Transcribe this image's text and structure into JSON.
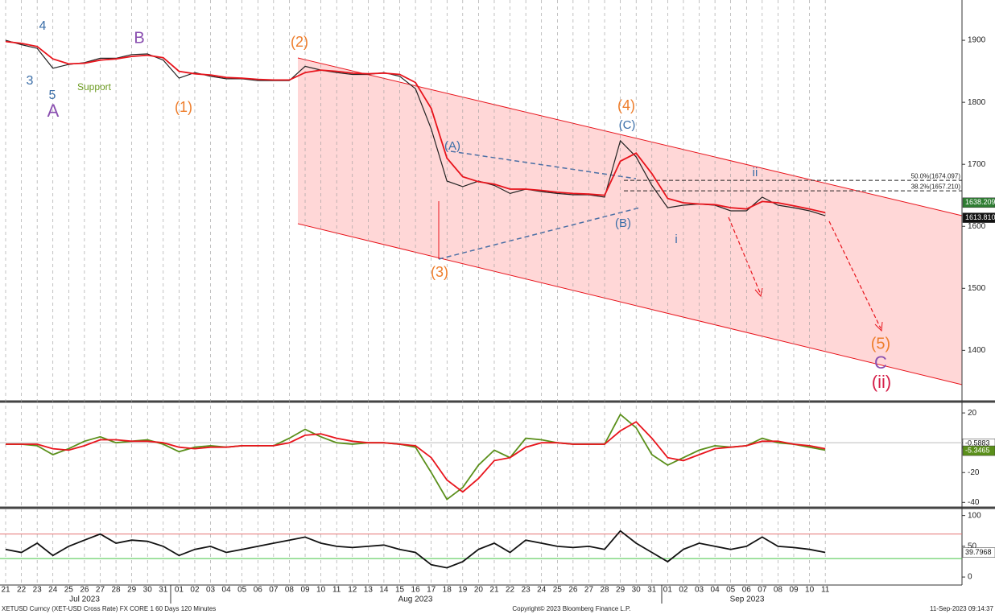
{
  "chart_data": [
    {
      "type": "line",
      "categories": [
        "21",
        "22",
        "23",
        "24",
        "25",
        "26",
        "27",
        "28",
        "29",
        "30",
        "31",
        "01",
        "02",
        "03",
        "04",
        "05",
        "06",
        "07",
        "08",
        "09",
        "10",
        "11",
        "12",
        "13",
        "14",
        "15",
        "16",
        "17",
        "18",
        "19",
        "20",
        "21",
        "22",
        "23",
        "24",
        "25",
        "26",
        "27",
        "28",
        "29",
        "30",
        "31",
        "01",
        "02",
        "03",
        "04",
        "05",
        "06",
        "07",
        "08",
        "09",
        "10",
        "11"
      ],
      "months": [
        "Jul 2023",
        "Aug 2023",
        "Sep 2023"
      ],
      "series": [
        {
          "color": "#222222",
          "values": [
            1900,
            1893,
            1887,
            1855,
            1861,
            1864,
            1871,
            1871,
            1877,
            1878,
            1868,
            1839,
            1848,
            1842,
            1838,
            1838,
            1835,
            1835,
            1835,
            1858,
            1852,
            1848,
            1845,
            1845,
            1848,
            1842,
            1822,
            1757,
            1673,
            1664,
            1673,
            1666,
            1653,
            1660,
            1656,
            1653,
            1651,
            1651,
            1647,
            1738,
            1712,
            1666,
            1630,
            1634,
            1636,
            1634,
            1625,
            1625,
            1647,
            1634,
            1630,
            1625,
            1617
          ]
        },
        {
          "color": "#e8141c",
          "values": [
            1898,
            1895,
            1890,
            1870,
            1862,
            1863,
            1868,
            1870,
            1874,
            1876,
            1872,
            1850,
            1846,
            1844,
            1840,
            1839,
            1837,
            1836,
            1836,
            1848,
            1852,
            1850,
            1847,
            1846,
            1847,
            1845,
            1832,
            1790,
            1710,
            1680,
            1672,
            1668,
            1660,
            1660,
            1658,
            1655,
            1653,
            1652,
            1650,
            1705,
            1718,
            1685,
            1645,
            1638,
            1636,
            1635,
            1630,
            1628,
            1640,
            1638,
            1633,
            1628,
            1622
          ]
        }
      ],
      "ylim": [
        1320,
        1965
      ],
      "yticks": [
        1400,
        1500,
        1600,
        1700,
        1800,
        1900
      ],
      "levels": [
        {
          "value": 1674.097,
          "label": "50.0%(1674.097)"
        },
        {
          "value": 1657.21,
          "label": "38.2%(1657.210)"
        }
      ],
      "last_values": [
        {
          "value": 1638.209,
          "label": "1638.209",
          "color": "#2e7d32"
        },
        {
          "value": 1613.81,
          "label": "1613.810",
          "color": "#111111"
        }
      ],
      "annotations": [
        "4",
        "3",
        "5",
        "A",
        "B",
        "Support",
        "(1)",
        "(2)",
        "(3)",
        "(4)",
        "(C)",
        "(A)",
        "(B)",
        "ii",
        "i",
        "(5)",
        "C",
        "(ii)"
      ]
    },
    {
      "type": "line",
      "series": [
        {
          "color": "#5a8f1a",
          "values": [
            -1,
            -1,
            -2,
            -8,
            -4,
            1,
            4,
            0,
            1,
            2,
            -1,
            -6,
            -3,
            -2,
            -3,
            -2,
            -2,
            -2,
            3,
            9,
            4,
            0,
            -1,
            0,
            0,
            -1,
            -3,
            -20,
            -38,
            -30,
            -15,
            -5,
            -10,
            3,
            2,
            0,
            -1,
            -1,
            -1,
            19,
            10,
            -8,
            -15,
            -10,
            -5,
            -2,
            -3,
            -2,
            3,
            0,
            -1,
            -3,
            -5
          ]
        },
        {
          "color": "#e8141c",
          "values": [
            -1,
            -1,
            -1,
            -4,
            -5,
            -2,
            2,
            2,
            1,
            1,
            0,
            -3,
            -4,
            -3,
            -3,
            -2,
            -2,
            -2,
            0,
            5,
            6,
            3,
            1,
            0,
            0,
            -1,
            -2,
            -10,
            -25,
            -33,
            -24,
            -12,
            -10,
            -3,
            0,
            0,
            -1,
            -1,
            -1,
            8,
            14,
            3,
            -10,
            -12,
            -8,
            -4,
            -3,
            -2,
            1,
            1,
            -1,
            -2,
            -4
          ]
        }
      ],
      "ylim": [
        -42,
        26
      ],
      "yticks": [
        -40,
        -20,
        0,
        20
      ],
      "last_values": [
        {
          "value": -0.5883,
          "label": "-0.5883",
          "color": "#ffffff"
        },
        {
          "value": -5.3465,
          "label": "-5.3465",
          "color": "#5a8f1a"
        }
      ]
    },
    {
      "type": "line",
      "series": [
        {
          "color": "#111111",
          "values": [
            45,
            40,
            55,
            35,
            50,
            60,
            70,
            55,
            60,
            58,
            50,
            35,
            45,
            50,
            40,
            45,
            50,
            55,
            60,
            65,
            55,
            50,
            48,
            50,
            52,
            45,
            40,
            20,
            15,
            25,
            45,
            55,
            40,
            60,
            55,
            50,
            48,
            50,
            45,
            75,
            55,
            40,
            25,
            45,
            55,
            50,
            45,
            50,
            65,
            50,
            48,
            45,
            40
          ]
        }
      ],
      "ylim": [
        -13,
        110
      ],
      "yticks": [
        0,
        50,
        100
      ],
      "bands": [
        {
          "value": 70,
          "color": "#e57373"
        },
        {
          "value": 30,
          "color": "#43c443"
        }
      ],
      "last_values": [
        {
          "value": 39.7968,
          "label": "39.7968",
          "color": "#ffffff"
        }
      ]
    }
  ],
  "footer": {
    "left": "XETUSD Curncy (XET-USD Cross Rate) FX CORE 1 60 Days 120 Minutes",
    "center": "Copyright© 2023 Bloomberg Finance L.P.",
    "right": "11-Sep-2023 09:14:37"
  }
}
